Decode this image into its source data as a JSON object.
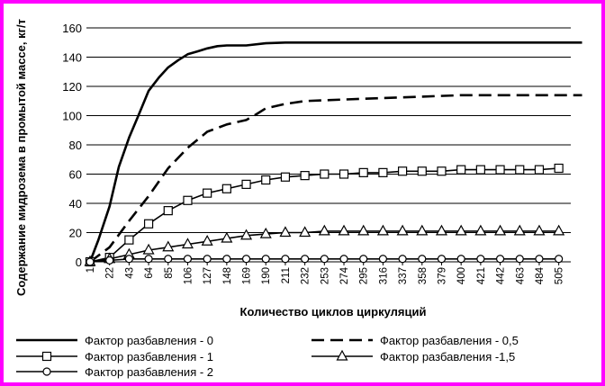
{
  "chart_data": {
    "type": "line",
    "xlabel": "Количество циклов циркуляций",
    "ylabel": "Содержание мидрозема в промытой массе, кг/т",
    "ylim": [
      0,
      160
    ],
    "yticks": [
      0,
      20,
      40,
      60,
      80,
      100,
      120,
      140,
      160
    ],
    "x_tick_labels": [
      "1",
      "22",
      "43",
      "64",
      "85",
      "106",
      "127",
      "148",
      "169",
      "190",
      "211",
      "232",
      "253",
      "274",
      "295",
      "316",
      "337",
      "358",
      "379",
      "400",
      "421",
      "442",
      "463",
      "484",
      "505"
    ],
    "grid": "horizontal",
    "legend_position": "bottom",
    "series": [
      {
        "name": "Фактор разбавления - 0",
        "style": "solid",
        "marker": "none",
        "color": "#000000",
        "points": [
          [
            1,
            0
          ],
          [
            10,
            15
          ],
          [
            22,
            38
          ],
          [
            32,
            65
          ],
          [
            43,
            85
          ],
          [
            53,
            100
          ],
          [
            64,
            117
          ],
          [
            75,
            126
          ],
          [
            85,
            133
          ],
          [
            96,
            138
          ],
          [
            106,
            142
          ],
          [
            117,
            144
          ],
          [
            127,
            146
          ],
          [
            138,
            147.5
          ],
          [
            148,
            148
          ],
          [
            169,
            148
          ],
          [
            190,
            149.5
          ],
          [
            211,
            150
          ],
          [
            253,
            150
          ],
          [
            337,
            150
          ],
          [
            421,
            150
          ],
          [
            505,
            150
          ],
          [
            530,
            150
          ]
        ]
      },
      {
        "name": "Фактор разбавления - 0,5",
        "style": "dashed",
        "marker": "none",
        "color": "#000000",
        "points": [
          [
            1,
            0
          ],
          [
            22,
            10
          ],
          [
            43,
            28
          ],
          [
            64,
            45
          ],
          [
            85,
            64
          ],
          [
            106,
            78
          ],
          [
            127,
            89
          ],
          [
            148,
            94
          ],
          [
            169,
            97
          ],
          [
            180,
            101
          ],
          [
            190,
            105
          ],
          [
            211,
            108
          ],
          [
            232,
            110
          ],
          [
            274,
            111
          ],
          [
            316,
            112
          ],
          [
            358,
            113
          ],
          [
            400,
            114
          ],
          [
            442,
            114
          ],
          [
            505,
            114
          ],
          [
            530,
            114
          ]
        ]
      },
      {
        "name": "Фактор разбавления - 1",
        "style": "solid",
        "marker": "square",
        "color": "#000000",
        "points": [
          [
            1,
            0
          ],
          [
            22,
            3
          ],
          [
            43,
            15
          ],
          [
            64,
            26
          ],
          [
            85,
            35
          ],
          [
            106,
            42
          ],
          [
            127,
            47
          ],
          [
            148,
            50
          ],
          [
            169,
            53
          ],
          [
            190,
            56
          ],
          [
            211,
            58
          ],
          [
            232,
            59
          ],
          [
            253,
            60
          ],
          [
            274,
            60
          ],
          [
            295,
            61
          ],
          [
            316,
            61
          ],
          [
            337,
            62
          ],
          [
            358,
            62
          ],
          [
            379,
            62
          ],
          [
            400,
            63
          ],
          [
            421,
            63
          ],
          [
            442,
            63
          ],
          [
            463,
            63
          ],
          [
            484,
            63
          ],
          [
            505,
            64
          ]
        ]
      },
      {
        "name": "Фактор разбавления -1,5",
        "style": "solid",
        "marker": "triangle",
        "color": "#000000",
        "points": [
          [
            1,
            0
          ],
          [
            22,
            2
          ],
          [
            43,
            5
          ],
          [
            64,
            8
          ],
          [
            85,
            10
          ],
          [
            106,
            12
          ],
          [
            127,
            14
          ],
          [
            148,
            16
          ],
          [
            169,
            18
          ],
          [
            190,
            19
          ],
          [
            211,
            20
          ],
          [
            232,
            20
          ],
          [
            253,
            21
          ],
          [
            274,
            21
          ],
          [
            295,
            21
          ],
          [
            316,
            21
          ],
          [
            337,
            21
          ],
          [
            358,
            21
          ],
          [
            379,
            21
          ],
          [
            400,
            21
          ],
          [
            421,
            21
          ],
          [
            442,
            21
          ],
          [
            463,
            21
          ],
          [
            484,
            21
          ],
          [
            505,
            21
          ]
        ]
      },
      {
        "name": "Фактор разбавления - 2",
        "style": "solid",
        "marker": "circle",
        "color": "#000000",
        "points": [
          [
            1,
            0
          ],
          [
            22,
            1
          ],
          [
            43,
            2
          ],
          [
            64,
            2
          ],
          [
            85,
            2
          ],
          [
            106,
            2
          ],
          [
            127,
            2
          ],
          [
            148,
            2
          ],
          [
            169,
            2
          ],
          [
            190,
            2
          ],
          [
            211,
            2
          ],
          [
            232,
            2
          ],
          [
            253,
            2
          ],
          [
            274,
            2
          ],
          [
            295,
            2
          ],
          [
            316,
            2
          ],
          [
            337,
            2
          ],
          [
            358,
            2
          ],
          [
            379,
            2
          ],
          [
            400,
            2
          ],
          [
            421,
            2
          ],
          [
            442,
            2
          ],
          [
            463,
            2
          ],
          [
            484,
            2
          ],
          [
            505,
            2
          ]
        ]
      }
    ]
  }
}
